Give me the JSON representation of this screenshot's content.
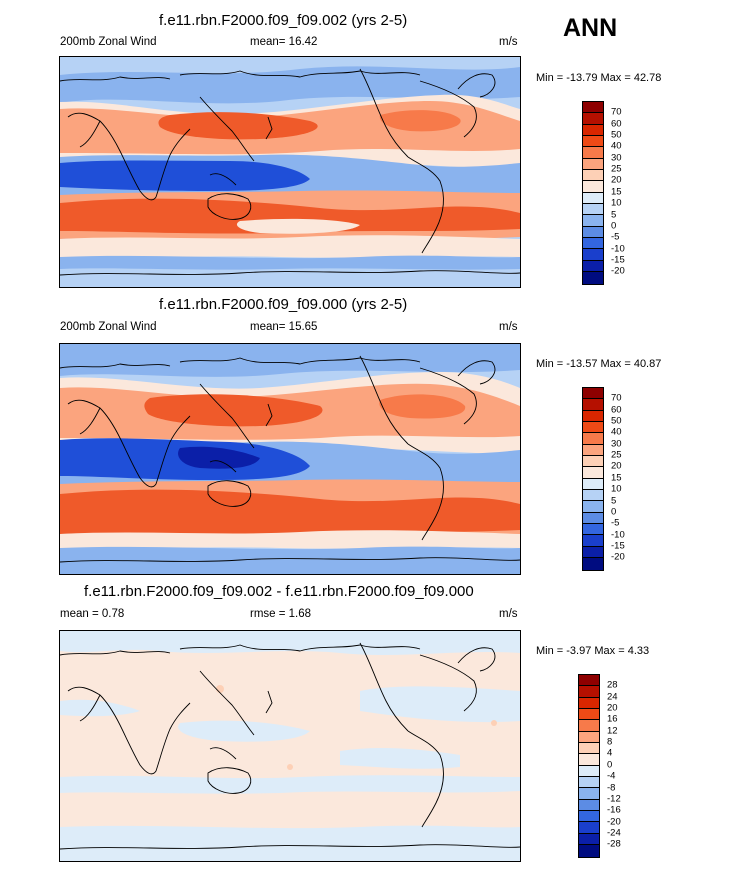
{
  "ann_label": "ANN",
  "panels": [
    {
      "title": "f.e11.rbn.F2000.f09_f09.002 (yrs 2-5)",
      "left_label": "200mb Zonal Wind",
      "mean_text": "mean=  16.42",
      "units": "m/s",
      "minmax": "Min = -13.79 Max =  42.78"
    },
    {
      "title": "f.e11.rbn.F2000.f09_f09.000 (yrs 2-5)",
      "left_label": "200mb Zonal Wind",
      "mean_text": "mean=  15.65",
      "units": "m/s",
      "minmax": "Min = -13.57 Max =  40.87"
    },
    {
      "title": "f.e11.rbn.F2000.f09_f09.002 - f.e11.rbn.F2000.f09_f09.000",
      "left_label": "mean =   0.78",
      "mean_text": "rmse =   1.68",
      "units": "m/s",
      "minmax": "Min =  -3.97 Max =   4.33"
    }
  ],
  "colorbar_wind": {
    "labels": [
      "70",
      "60",
      "50",
      "40",
      "30",
      "25",
      "20",
      "15",
      "10",
      "5",
      "0",
      "-5",
      "-10",
      "-15",
      "-20"
    ],
    "colors": [
      "#8e0000",
      "#b51000",
      "#d92600",
      "#ef4a16",
      "#f77a4a",
      "#fba47e",
      "#fdd0b6",
      "#fbe8dc",
      "#ddecf9",
      "#b6d2f5",
      "#8ab3ee",
      "#5c8ce4",
      "#3366e0",
      "#1a3fcc",
      "#0b1fa8",
      "#000c80"
    ]
  },
  "colorbar_diff": {
    "labels": [
      "28",
      "24",
      "20",
      "16",
      "12",
      "8",
      "4",
      "0",
      "-4",
      "-8",
      "-12",
      "-16",
      "-20",
      "-24",
      "-28"
    ],
    "colors": [
      "#8e0000",
      "#b51000",
      "#d92600",
      "#ef4a16",
      "#f77a4a",
      "#fba47e",
      "#fdd0b6",
      "#fbe8dc",
      "#ddecf9",
      "#b6d2f5",
      "#8ab3ee",
      "#5c8ce4",
      "#3366e0",
      "#1a3fcc",
      "#0b1fa8",
      "#000c80"
    ]
  },
  "chart_data": [
    {
      "type": "heatmap",
      "title": "f.e11.rbn.F2000.f09_f09.002 (yrs 2-5)",
      "variable": "200mb Zonal Wind",
      "units": "m/s",
      "mean": 16.42,
      "min": -13.79,
      "max": 42.78,
      "contour_levels": [
        -20,
        -15,
        -10,
        -5,
        0,
        5,
        10,
        15,
        20,
        25,
        30,
        40,
        50,
        60,
        70
      ],
      "colors": {
        "neg_strong": "#1f4fd8",
        "neg": "#5c8ce4",
        "weak": "#b6d2f5",
        "mid": "#fbe8dc",
        "pos": "#fba47e",
        "pos_strong": "#ef5a2a"
      }
    },
    {
      "type": "heatmap",
      "title": "f.e11.rbn.F2000.f09_f09.000 (yrs 2-5)",
      "variable": "200mb Zonal Wind",
      "units": "m/s",
      "mean": 15.65,
      "min": -13.57,
      "max": 40.87,
      "contour_levels": [
        -20,
        -15,
        -10,
        -5,
        0,
        5,
        10,
        15,
        20,
        25,
        30,
        40,
        50,
        60,
        70
      ],
      "colors": {
        "neg_strong": "#1f4fd8",
        "neg": "#5c8ce4",
        "weak": "#b6d2f5",
        "mid": "#fbe8dc",
        "pos": "#fba47e",
        "pos_strong": "#ef5a2a"
      }
    },
    {
      "type": "heatmap",
      "title": "f.e11.rbn.F2000.f09_f09.002 - f.e11.rbn.F2000.f09_f09.000",
      "units": "m/s",
      "mean": 0.78,
      "rmse": 1.68,
      "min": -3.97,
      "max": 4.33,
      "contour_levels": [
        -28,
        -24,
        -20,
        -16,
        -12,
        -8,
        -4,
        0,
        4,
        8,
        12,
        16,
        20,
        24,
        28
      ],
      "colors": {
        "neg": "#ddecf9",
        "pos": "#fbe8dc",
        "pos_spot": "#fdd0b6"
      }
    }
  ]
}
